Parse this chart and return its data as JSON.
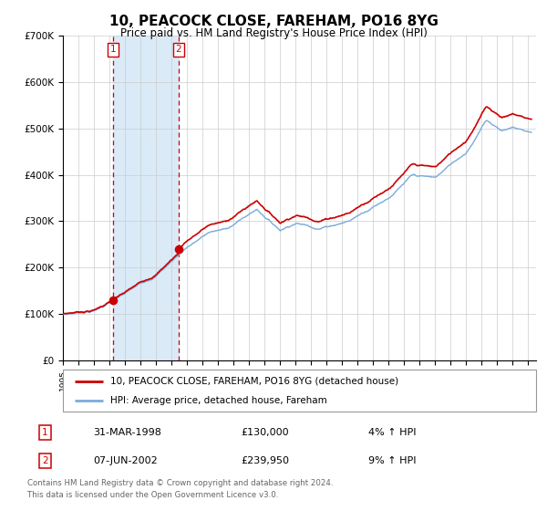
{
  "title": "10, PEACOCK CLOSE, FAREHAM, PO16 8YG",
  "subtitle": "Price paid vs. HM Land Registry's House Price Index (HPI)",
  "legend_line1": "10, PEACOCK CLOSE, FAREHAM, PO16 8YG (detached house)",
  "legend_line2": "HPI: Average price, detached house, Fareham",
  "footnote": "Contains HM Land Registry data © Crown copyright and database right 2024.\nThis data is licensed under the Open Government Licence v3.0.",
  "transaction1_date": "31-MAR-1998",
  "transaction1_price": "£130,000",
  "transaction1_hpi": "4% ↑ HPI",
  "transaction2_date": "07-JUN-2002",
  "transaction2_price": "£239,950",
  "transaction2_hpi": "9% ↑ HPI",
  "xmin": 1995.0,
  "xmax": 2025.5,
  "ymin": 0,
  "ymax": 700000,
  "red_color": "#cc0000",
  "blue_color": "#7aabdb",
  "shading_color": "#daeaf7",
  "grid_color": "#cccccc",
  "transaction1_x": 1998.25,
  "transaction2_x": 2002.44,
  "price1": 130000,
  "price2": 239950,
  "background_color": "#ffffff"
}
